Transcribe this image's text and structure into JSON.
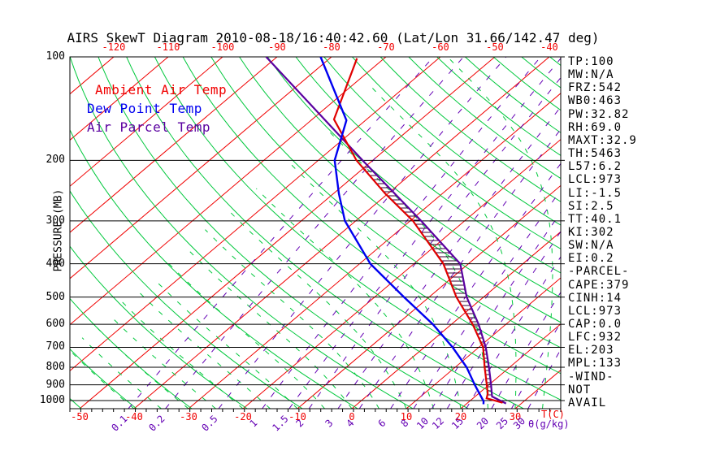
{
  "title": "AIRS SkewT Diagram 2010-08-18/16:40:42.60 (Lat/Lon 31.66/142.47 deg)",
  "colors": {
    "isotherm_red": "#f00000",
    "adiabat_green": "#00c83c",
    "mixing_purple": "#6400b4",
    "ambient_red": "#e00000",
    "dewpoint_blue": "#0000f0",
    "parcel_purple": "#5a00a0",
    "hatch_dark": "#330033",
    "axis_black": "#000000"
  },
  "legend": [
    {
      "label": "Ambient Air Temp",
      "color": "#f00000"
    },
    {
      "label": "Dew Point Temp",
      "color": "#0000f0"
    },
    {
      "label": "Air Parcel Temp",
      "color": "#5a00a0"
    }
  ],
  "axes": {
    "pressure_label": "PRESSURE (MB)",
    "temp_label": "T(C)",
    "mixing_label": "θ(g/kg)",
    "pressure_ticks": [
      100,
      200,
      300,
      400,
      500,
      600,
      700,
      800,
      900,
      1000
    ],
    "top_temp_ticks": [
      -120,
      -110,
      -100,
      -90,
      -80,
      -70,
      -60,
      -50,
      -40
    ],
    "bottom_temp_ticks": [
      -50,
      -40,
      -30,
      -20,
      -10,
      0,
      10,
      20,
      30
    ],
    "mixing_ratio_ticks": [
      "0.1",
      "0.2",
      "0.5",
      "1",
      "1.5",
      "2",
      "3",
      "4",
      "6",
      "8",
      "10",
      "12",
      "15",
      "20",
      "25",
      "30"
    ]
  },
  "side_panel": {
    "lines": [
      "TP:100",
      "MW:N/A",
      "FRZ:542",
      "WB0:463",
      "PW:32.82",
      "RH:69.0",
      "MAXT:32.9",
      "TH:5463",
      "L57:6.2",
      "LCL:973",
      "LI:-1.5",
      "SI:2.5",
      "TT:40.1",
      "KI:302",
      "SW:N/A",
      "EI:0.2",
      "-PARCEL-",
      "CAPE:379",
      "CINH:14",
      "LCL:973",
      "CAP:0.0",
      "LFC:932",
      "EL:203",
      "MPL:133",
      "-WIND-",
      "NOT",
      "AVAIL"
    ]
  },
  "chart_data": {
    "type": "line",
    "variant": "skew-t-log-p",
    "title": "AIRS SkewT Diagram 2010-08-18/16:40:42.60 (Lat/Lon 31.66/142.47 deg)",
    "xlabel": "T(C)",
    "ylabel": "PRESSURE (MB)",
    "y_scale": "log",
    "y_range_mb": [
      100,
      1056
    ],
    "x_top_ticks_c": [
      -120,
      -110,
      -100,
      -90,
      -80,
      -70,
      -60,
      -50,
      -40
    ],
    "x_bottom_ticks_c": [
      -50,
      -40,
      -30,
      -20,
      -10,
      0,
      10,
      20,
      30
    ],
    "grid": {
      "isotherms_c": {
        "min": -160,
        "max": 40,
        "step": 10
      },
      "dry_adiabats_k": {
        "min": 210,
        "max": 450,
        "step": 10
      },
      "moist_adiabats_start_c": {
        "min": -40,
        "max": 40,
        "step": 5
      },
      "mixing_ratios_gkg": [
        0.1,
        0.2,
        0.5,
        1,
        1.5,
        2,
        3,
        4,
        6,
        8,
        10,
        12,
        15,
        20,
        25,
        30
      ],
      "hatch_between": [
        "Ambient Air Temp",
        "Air Parcel Temp"
      ],
      "hatch_pressure_range_mb": [
        203,
        960
      ]
    },
    "series": [
      {
        "name": "Ambient Air Temp",
        "color": "#e00000",
        "points_p_t": [
          [
            101,
            -75
          ],
          [
            152,
            -66
          ],
          [
            200,
            -53
          ],
          [
            250,
            -40.5
          ],
          [
            300,
            -29.5
          ],
          [
            400,
            -14.6
          ],
          [
            500,
            -5.0
          ],
          [
            600,
            3.9
          ],
          [
            700,
            10.8
          ],
          [
            800,
            15.4
          ],
          [
            900,
            19.6
          ],
          [
            955,
            21.7
          ],
          [
            985,
            22.5
          ],
          [
            1015,
            26.4
          ]
        ]
      },
      {
        "name": "Dew Point Temp",
        "color": "#0000f0",
        "points_p_t": [
          [
            100,
            -82
          ],
          [
            153,
            -63.5
          ],
          [
            200,
            -57
          ],
          [
            250,
            -49
          ],
          [
            300,
            -42
          ],
          [
            400,
            -28
          ],
          [
            500,
            -14.6
          ],
          [
            600,
            -3.4
          ],
          [
            700,
            5.2
          ],
          [
            800,
            12.1
          ],
          [
            900,
            17.4
          ],
          [
            1005,
            22.6
          ],
          [
            1025,
            23.2
          ]
        ]
      },
      {
        "name": "Air Parcel Temp",
        "color": "#5a00a0",
        "points_p_t": [
          [
            100,
            -92
          ],
          [
            203,
            -51
          ],
          [
            300,
            -28
          ],
          [
            400,
            -11.5
          ],
          [
            500,
            -3.1
          ],
          [
            600,
            5.0
          ],
          [
            700,
            11.3
          ],
          [
            800,
            16.2
          ],
          [
            900,
            20.4
          ],
          [
            973,
            23.1
          ],
          [
            1020,
            27.2
          ]
        ]
      }
    ],
    "indices": {
      "EL_mb": 203,
      "LCL_mb": 973,
      "LFC_mb": 932,
      "CAPE": 379,
      "CINH": 14
    }
  }
}
